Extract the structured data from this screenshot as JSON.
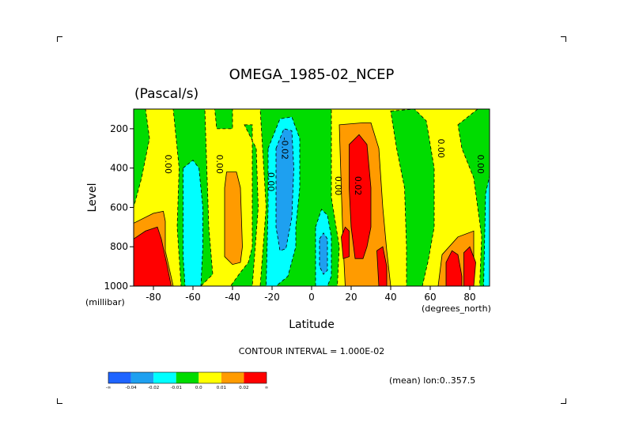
{
  "chart_data": {
    "type": "heatmap",
    "title": "OMEGA_1985-02_NCEP",
    "units": "(Pascal/s)",
    "xlabel": "Latitude",
    "xunits": "(degrees_north)",
    "ylabel": "Level",
    "yunits": "(millibar)",
    "xlim": [
      -90,
      90
    ],
    "ylim": [
      1000,
      100
    ],
    "xticks": [
      "-80",
      "-60",
      "-40",
      "-20",
      "0",
      "20",
      "40",
      "60",
      "80"
    ],
    "yticks": [
      "200",
      "400",
      "600",
      "800",
      "1000"
    ],
    "contour_interval": "CONTOUR INTERVAL = 1.000E-02",
    "footnote": "(mean) lon:0..357.5",
    "colorbar": {
      "colors": [
        "#1e64ff",
        "#1ea0f0",
        "#00ffff",
        "#00dc00",
        "#ffff00",
        "#ff9b00",
        "#ff0000"
      ],
      "labels": [
        "-∞",
        "-0.04",
        "-0.02",
        "-0.01",
        "0.0",
        "0.01",
        "0.02",
        "∞"
      ]
    },
    "contour_labels": [
      {
        "text": "0.00",
        "x": -74,
        "y": 380
      },
      {
        "text": "0.00",
        "x": -48,
        "y": 380
      },
      {
        "text": "0.00",
        "x": -22,
        "y": 470
      },
      {
        "text": "-0.02",
        "x": -15,
        "y": 300
      },
      {
        "text": "0.00",
        "x": 12,
        "y": 490
      },
      {
        "text": "0.02",
        "x": 22,
        "y": 490
      },
      {
        "text": "0.00",
        "x": 64,
        "y": 300
      },
      {
        "text": "0.00",
        "x": 84,
        "y": 380
      }
    ],
    "regions": [
      {
        "value": 0.0,
        "color": "#ffff00",
        "poly": [
          [
            -90,
            100
          ],
          [
            90,
            100
          ],
          [
            90,
            1000
          ],
          [
            -90,
            1000
          ]
        ]
      },
      {
        "value": -0.01,
        "color": "#00dc00",
        "poly": [
          [
            -90,
            100
          ],
          [
            -84,
            100
          ],
          [
            -82,
            250
          ],
          [
            -86,
            450
          ],
          [
            -90,
            600
          ]
        ]
      },
      {
        "value": -0.01,
        "color": "#00dc00",
        "poly": [
          [
            -70,
            100
          ],
          [
            -54,
            100
          ],
          [
            -53,
            400
          ],
          [
            -52,
            700
          ],
          [
            -50,
            940
          ],
          [
            -56,
            1000
          ],
          [
            -66,
            1000
          ],
          [
            -68,
            700
          ],
          [
            -67,
            400
          ]
        ]
      },
      {
        "value": -0.01,
        "color": "#00dc00",
        "poly": [
          [
            -49,
            100
          ],
          [
            -40,
            100
          ],
          [
            -40,
            200
          ],
          [
            -48,
            200
          ]
        ]
      },
      {
        "value": -0.01,
        "color": "#00dc00",
        "poly": [
          [
            -34,
            180
          ],
          [
            -30,
            180
          ],
          [
            -30,
            800
          ],
          [
            -32,
            880
          ],
          [
            -36,
            930
          ],
          [
            -41,
            1000
          ],
          [
            -30,
            1000
          ],
          [
            -27,
            600
          ],
          [
            -28,
            300
          ]
        ]
      },
      {
        "value": -0.01,
        "color": "#00dc00",
        "poly": [
          [
            -26,
            100
          ],
          [
            10,
            100
          ],
          [
            10,
            550
          ],
          [
            14,
            800
          ],
          [
            13,
            1000
          ],
          [
            -26,
            1000
          ],
          [
            -23,
            600
          ]
        ]
      },
      {
        "value": -0.01,
        "color": "#00dc00",
        "poly": [
          [
            40,
            110
          ],
          [
            52,
            100
          ],
          [
            58,
            160
          ],
          [
            62,
            400
          ],
          [
            62,
            700
          ],
          [
            59,
            870
          ],
          [
            56,
            1000
          ],
          [
            48,
            1000
          ],
          [
            48,
            800
          ],
          [
            47,
            500
          ],
          [
            43,
            300
          ]
        ]
      },
      {
        "value": -0.01,
        "color": "#00dc00",
        "poly": [
          [
            74,
            180
          ],
          [
            84,
            100
          ],
          [
            90,
            100
          ],
          [
            90,
            1000
          ],
          [
            85,
            1000
          ],
          [
            86,
            750
          ],
          [
            82,
            450
          ],
          [
            76,
            300
          ]
        ]
      },
      {
        "value": -0.02,
        "color": "#00ffff",
        "poly": [
          [
            -65,
            400
          ],
          [
            -60,
            360
          ],
          [
            -57,
            400
          ],
          [
            -55,
            600
          ],
          [
            -55,
            800
          ],
          [
            -56,
            1000
          ],
          [
            -64,
            1000
          ],
          [
            -65,
            850
          ]
        ]
      },
      {
        "value": -0.02,
        "color": "#00ffff",
        "poly": [
          [
            -22,
            300
          ],
          [
            -16,
            150
          ],
          [
            -10,
            140
          ],
          [
            -6,
            250
          ],
          [
            -6,
            500
          ],
          [
            -8,
            700
          ],
          [
            -8,
            800
          ],
          [
            -12,
            950
          ],
          [
            -18,
            1000
          ],
          [
            -23,
            1000
          ],
          [
            -22,
            600
          ]
        ]
      },
      {
        "value": -0.02,
        "color": "#00ffff",
        "poly": [
          [
            2,
            700
          ],
          [
            5,
            610
          ],
          [
            8,
            640
          ],
          [
            10,
            750
          ],
          [
            10,
            950
          ],
          [
            8,
            1000
          ],
          [
            2,
            1000
          ]
        ]
      },
      {
        "value": -0.02,
        "color": "#00ffff",
        "poly": [
          [
            88,
            530
          ],
          [
            90,
            440
          ],
          [
            90,
            1000
          ],
          [
            87,
            1000
          ]
        ]
      },
      {
        "value": -0.04,
        "color": "#1ea0f0",
        "poly": [
          [
            -18,
            300
          ],
          [
            -14,
            200
          ],
          [
            -10,
            210
          ],
          [
            -9,
            400
          ],
          [
            -10,
            650
          ],
          [
            -13,
            810
          ],
          [
            -16,
            820
          ],
          [
            -18,
            700
          ]
        ]
      },
      {
        "value": -0.04,
        "color": "#1ea0f0",
        "poly": [
          [
            4,
            760
          ],
          [
            6,
            730
          ],
          [
            8,
            760
          ],
          [
            8,
            920
          ],
          [
            6,
            940
          ],
          [
            4,
            900
          ]
        ]
      },
      {
        "value": 0.01,
        "color": "#ff9b00",
        "poly": [
          [
            -90,
            680
          ],
          [
            -80,
            630
          ],
          [
            -75,
            620
          ],
          [
            -74,
            670
          ],
          [
            -74,
            820
          ],
          [
            -70,
            1000
          ],
          [
            -90,
            1000
          ]
        ]
      },
      {
        "value": 0.01,
        "color": "#ff9b00",
        "poly": [
          [
            -43,
            420
          ],
          [
            -38,
            420
          ],
          [
            -36,
            500
          ],
          [
            -35,
            800
          ],
          [
            -36,
            880
          ],
          [
            -40,
            890
          ],
          [
            -44,
            850
          ],
          [
            -44,
            500
          ]
        ]
      },
      {
        "value": 0.01,
        "color": "#ff9b00",
        "poly": [
          [
            14,
            180
          ],
          [
            26,
            170
          ],
          [
            30,
            170
          ],
          [
            34,
            300
          ],
          [
            36,
            600
          ],
          [
            38,
            820
          ],
          [
            40,
            1000
          ],
          [
            17,
            1000
          ],
          [
            16,
            800
          ],
          [
            15,
            500
          ]
        ]
      },
      {
        "value": 0.01,
        "color": "#ff9b00",
        "poly": [
          [
            66,
            840
          ],
          [
            74,
            750
          ],
          [
            82,
            720
          ],
          [
            82,
            900
          ],
          [
            80,
            1000
          ],
          [
            64,
            1000
          ]
        ]
      },
      {
        "value": 0.02,
        "color": "#ff0000",
        "poly": [
          [
            -90,
            760
          ],
          [
            -84,
            720
          ],
          [
            -78,
            700
          ],
          [
            -76,
            760
          ],
          [
            -73,
            900
          ],
          [
            -71,
            1000
          ],
          [
            -90,
            1000
          ]
        ]
      },
      {
        "value": 0.02,
        "color": "#ff0000",
        "poly": [
          [
            19,
            280
          ],
          [
            24,
            230
          ],
          [
            28,
            280
          ],
          [
            30,
            500
          ],
          [
            30,
            700
          ],
          [
            28,
            800
          ],
          [
            26,
            860
          ],
          [
            22,
            860
          ],
          [
            20,
            700
          ],
          [
            19,
            500
          ]
        ]
      },
      {
        "value": 0.02,
        "color": "#ff0000",
        "poly": [
          [
            15,
            750
          ],
          [
            17,
            700
          ],
          [
            19,
            720
          ],
          [
            19,
            850
          ],
          [
            16,
            860
          ]
        ]
      },
      {
        "value": 0.02,
        "color": "#ff0000",
        "poly": [
          [
            33,
            820
          ],
          [
            36,
            800
          ],
          [
            38,
            900
          ],
          [
            38,
            1000
          ],
          [
            34,
            1000
          ]
        ]
      },
      {
        "value": 0.02,
        "color": "#ff0000",
        "poly": [
          [
            68,
            880
          ],
          [
            71,
            820
          ],
          [
            74,
            840
          ],
          [
            76,
            950
          ],
          [
            76,
            1000
          ],
          [
            68,
            1000
          ]
        ]
      },
      {
        "value": 0.02,
        "color": "#ff0000",
        "poly": [
          [
            77,
            830
          ],
          [
            80,
            800
          ],
          [
            83,
            880
          ],
          [
            82,
            1000
          ],
          [
            77,
            1000
          ]
        ]
      }
    ]
  }
}
